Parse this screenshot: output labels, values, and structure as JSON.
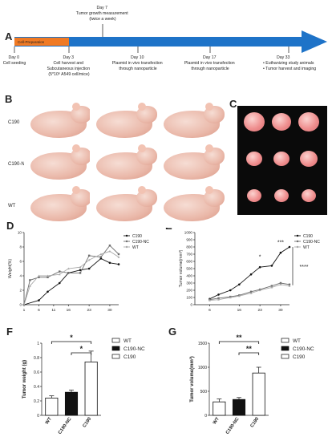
{
  "panels": {
    "A": "A",
    "B": "B",
    "C": "C",
    "D": "D",
    "E": "E",
    "F": "F",
    "G": "G"
  },
  "timeline": {
    "bar_label": "Cell-Preparation",
    "colors": {
      "bar": "#1e73c8",
      "prep": "#f07a24"
    },
    "events_below": [
      {
        "lines": [
          "Day 0",
          "Cell seeding"
        ]
      },
      {
        "lines": [
          "Day 3",
          "Cell harvest and",
          "Subcutaneous injection",
          "(5*10⁶ A549 cell/mice)"
        ]
      },
      {
        "lines": [
          "Day 10",
          "Plasmid in vivo transfection",
          "through nanoparticle"
        ]
      },
      {
        "lines": [
          "Day 17",
          "Plasmid in vivo transfection",
          "through nanoparticle"
        ]
      },
      {
        "lines": [
          "Day 33",
          "• Euthanizing study animals",
          "• Tumor harvest and imaging"
        ]
      }
    ],
    "event_above": {
      "lines": [
        "Day 7",
        "Tumor growth measurement",
        "(twice a week)"
      ]
    }
  },
  "mice_rows": [
    "C190",
    "C190-NC",
    "WT"
  ],
  "chart_data": [
    {
      "type": "line",
      "panel": "D",
      "xlabel": "",
      "ylabel": "Weight(%)",
      "x_ticks": [
        1,
        6,
        11,
        16,
        23,
        30
      ],
      "y_ticks": [
        0,
        2,
        4,
        6,
        8,
        10
      ],
      "ylim": [
        0,
        10
      ],
      "legend": "right",
      "series": [
        {
          "name": "C190",
          "color": "#111111",
          "x": [
            1,
            6,
            9,
            13,
            16,
            20,
            23,
            27,
            30,
            33
          ],
          "y": [
            0,
            0.6,
            1.8,
            3.0,
            4.4,
            4.8,
            5.0,
            6.4,
            5.8,
            5.6
          ]
        },
        {
          "name": "C190-NC",
          "color": "#6e6e6e",
          "x": [
            1,
            3,
            6,
            9,
            13,
            16,
            20,
            23,
            27,
            30,
            33
          ],
          "y": [
            0,
            3.4,
            3.8,
            3.8,
            4.6,
            4.4,
            4.4,
            6.8,
            6.6,
            8.2,
            7.0
          ]
        },
        {
          "name": "WT",
          "color": "#a9a9a9",
          "x": [
            1,
            3,
            6,
            9,
            13,
            16,
            20,
            23,
            27,
            30,
            33
          ],
          "y": [
            0,
            2.6,
            4.0,
            4.0,
            4.2,
            5.0,
            5.2,
            6.2,
            7.0,
            7.4,
            6.6
          ]
        }
      ]
    },
    {
      "type": "line",
      "panel": "E",
      "xlabel": "",
      "ylabel": "Tumor volume(mm³)",
      "x_ticks": [
        6,
        16,
        23,
        30
      ],
      "y_ticks": [
        0,
        100,
        200,
        300,
        400,
        500,
        600,
        700,
        800,
        900,
        1000
      ],
      "ylim": [
        0,
        1000
      ],
      "legend": "right",
      "annotations": [
        "*",
        "***",
        "****"
      ],
      "series": [
        {
          "name": "C190",
          "color": "#111111",
          "x": [
            6,
            9,
            13,
            16,
            20,
            23,
            27,
            30,
            33
          ],
          "y": [
            80,
            140,
            200,
            280,
            420,
            520,
            540,
            720,
            800
          ]
        },
        {
          "name": "C190-NC",
          "color": "#6e6e6e",
          "x": [
            6,
            9,
            13,
            16,
            20,
            23,
            27,
            30,
            33
          ],
          "y": [
            70,
            90,
            110,
            130,
            180,
            210,
            260,
            300,
            280
          ]
        },
        {
          "name": "WT",
          "color": "#a9a9a9",
          "x": [
            6,
            9,
            13,
            16,
            20,
            23,
            27,
            30,
            33
          ],
          "y": [
            60,
            70,
            100,
            120,
            160,
            200,
            240,
            280,
            260
          ]
        }
      ]
    },
    {
      "type": "bar",
      "panel": "F",
      "ylabel": "Tumor weight (g)",
      "categories": [
        "WT",
        "C190-NC",
        "C190"
      ],
      "values": [
        0.24,
        0.32,
        0.74
      ],
      "errors": [
        0.03,
        0.03,
        0.15
      ],
      "y_ticks": [
        0.0,
        0.2,
        0.4,
        0.6,
        0.8,
        1.0
      ],
      "ylim": [
        0,
        1.0
      ],
      "legend": "right",
      "legend_labels": [
        "WT",
        "C190-NC",
        "C190"
      ],
      "significance": [
        "*",
        "*"
      ]
    },
    {
      "type": "bar",
      "panel": "G",
      "ylabel": "Tumor volume(mm³)",
      "categories": [
        "WT",
        "C190-NC",
        "C190"
      ],
      "values": [
        280,
        330,
        880
      ],
      "errors": [
        60,
        40,
        120
      ],
      "y_ticks": [
        0,
        500,
        1000,
        1500
      ],
      "ylim": [
        0,
        1500
      ],
      "legend": "right",
      "legend_labels": [
        "WT",
        "C190-NC",
        "C190"
      ],
      "significance": [
        "**",
        "**"
      ]
    }
  ]
}
